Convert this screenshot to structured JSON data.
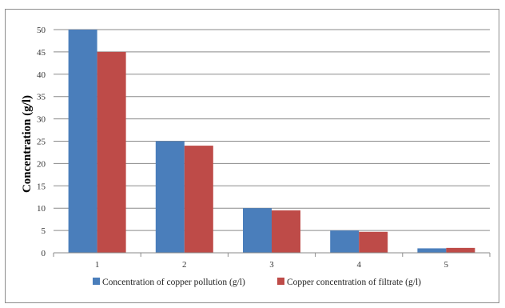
{
  "chart_data": {
    "type": "bar",
    "title": "",
    "xlabel": "",
    "ylabel": "Concentration (g/l)",
    "categories": [
      "1",
      "2",
      "3",
      "4",
      "5"
    ],
    "series": [
      {
        "name": "Concentration of copper pollution (g/l)",
        "values": [
          50,
          25,
          10,
          5,
          1
        ],
        "color": "#4a7ebb"
      },
      {
        "name": "Copper concentration of filtrate (g/l)",
        "values": [
          45,
          24,
          9.5,
          4.7,
          1.1
        ],
        "color": "#be4b48"
      }
    ],
    "ylim": [
      0,
      50
    ],
    "yticks": [
      "0",
      "5",
      "10",
      "15",
      "20",
      "25",
      "30",
      "35",
      "40",
      "45",
      "50"
    ],
    "grid": true,
    "legend_position": "bottom"
  }
}
